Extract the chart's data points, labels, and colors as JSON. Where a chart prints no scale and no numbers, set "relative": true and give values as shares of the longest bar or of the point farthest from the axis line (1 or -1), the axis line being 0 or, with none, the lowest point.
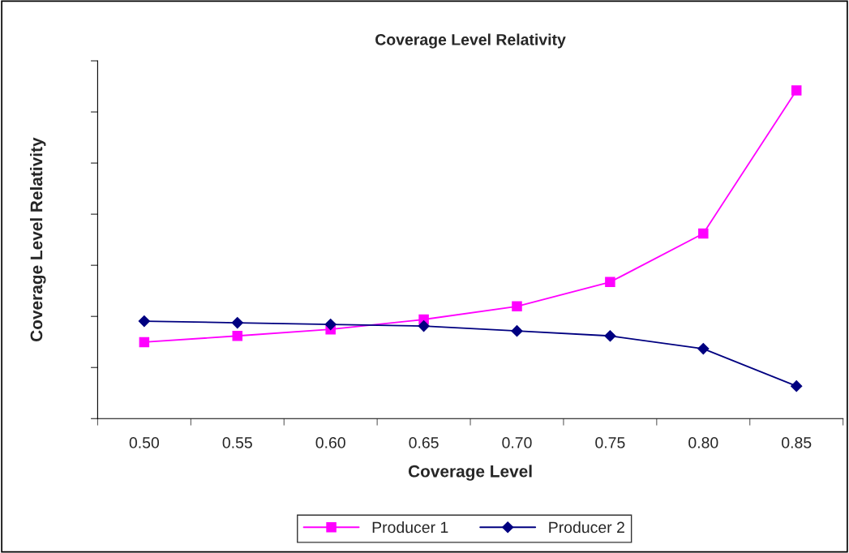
{
  "chart_data": {
    "type": "line",
    "title": "Coverage Level Relativity",
    "xlabel": "Coverage Level",
    "ylabel": "Coverage Level Relativity",
    "categories": [
      "0.50",
      "0.55",
      "0.60",
      "0.65",
      "0.70",
      "0.75",
      "0.80",
      "0.85"
    ],
    "relative": true,
    "tick_labels": "x",
    "grid": false,
    "legend": "bottom",
    "series": [
      {
        "name": "Producer 1",
        "color": "#ff00ff",
        "marker": "square",
        "values": [
          0.233,
          0.252,
          0.272,
          0.302,
          0.342,
          0.416,
          0.564,
          1
        ]
      },
      {
        "name": "Producer 2",
        "color": "#000080",
        "marker": "diamond",
        "values": [
          0.297,
          0.292,
          0.287,
          0.282,
          0.267,
          0.252,
          0.213,
          0.099
        ]
      }
    ]
  }
}
